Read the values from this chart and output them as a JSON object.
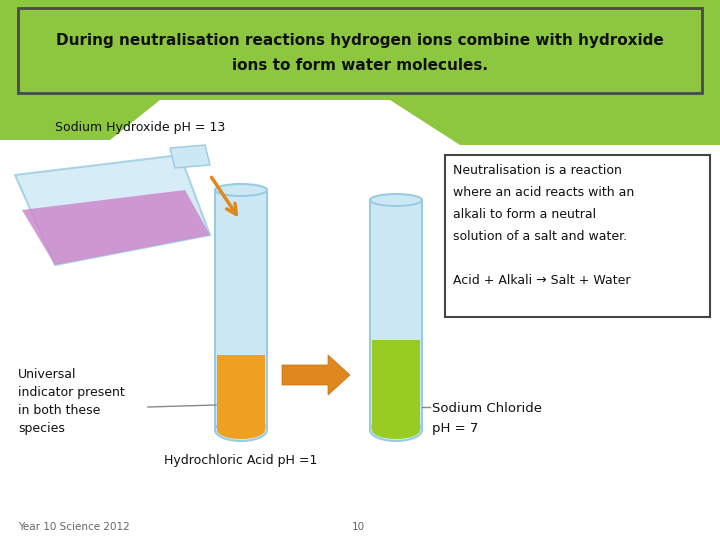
{
  "slide_bg": "#ffffff",
  "green_bg": "#8dc63f",
  "title_text_line1": "During neutralisation reactions hydrogen ions combine with hydroxide",
  "title_text_line2": "ions to form water molecules.",
  "title_border_color": "#4a4a4a",
  "sodium_hydroxide_label": "Sodium Hydroxide pH = 13",
  "universal_indicator_label": "Universal\nindicator present\nin both these\nspecies",
  "hydrochloric_acid_label": "Hydrochloric Acid pH =1",
  "sodium_chloride_label": "Sodium Chloride\npH = 7",
  "info_line1": "Neutralisation is a reaction",
  "info_line2": "where an acid reacts with an",
  "info_line3": "alkali to form a neutral",
  "info_line4": "solution of a salt and water.",
  "info_line5": "Acid + Alkali → Salt + Water",
  "footer_left": "Year 10 Science 2012",
  "footer_center": "10",
  "flask_glass_color": "#cce8f5",
  "flask_liquid_color": "#cc88cc",
  "tube_glass_color": "#cce8f5",
  "tube_glass_edge": "#99cce0",
  "tube1_liquid_color": "#f0a020",
  "tube2_liquid_color": "#99cc22",
  "arrow_color": "#e08820",
  "pour_arrow_color": "#e08820",
  "info_box_bg": "#ffffff",
  "info_box_border": "#444444",
  "line_color": "#888888",
  "text_color": "#111111",
  "footer_color": "#666666"
}
